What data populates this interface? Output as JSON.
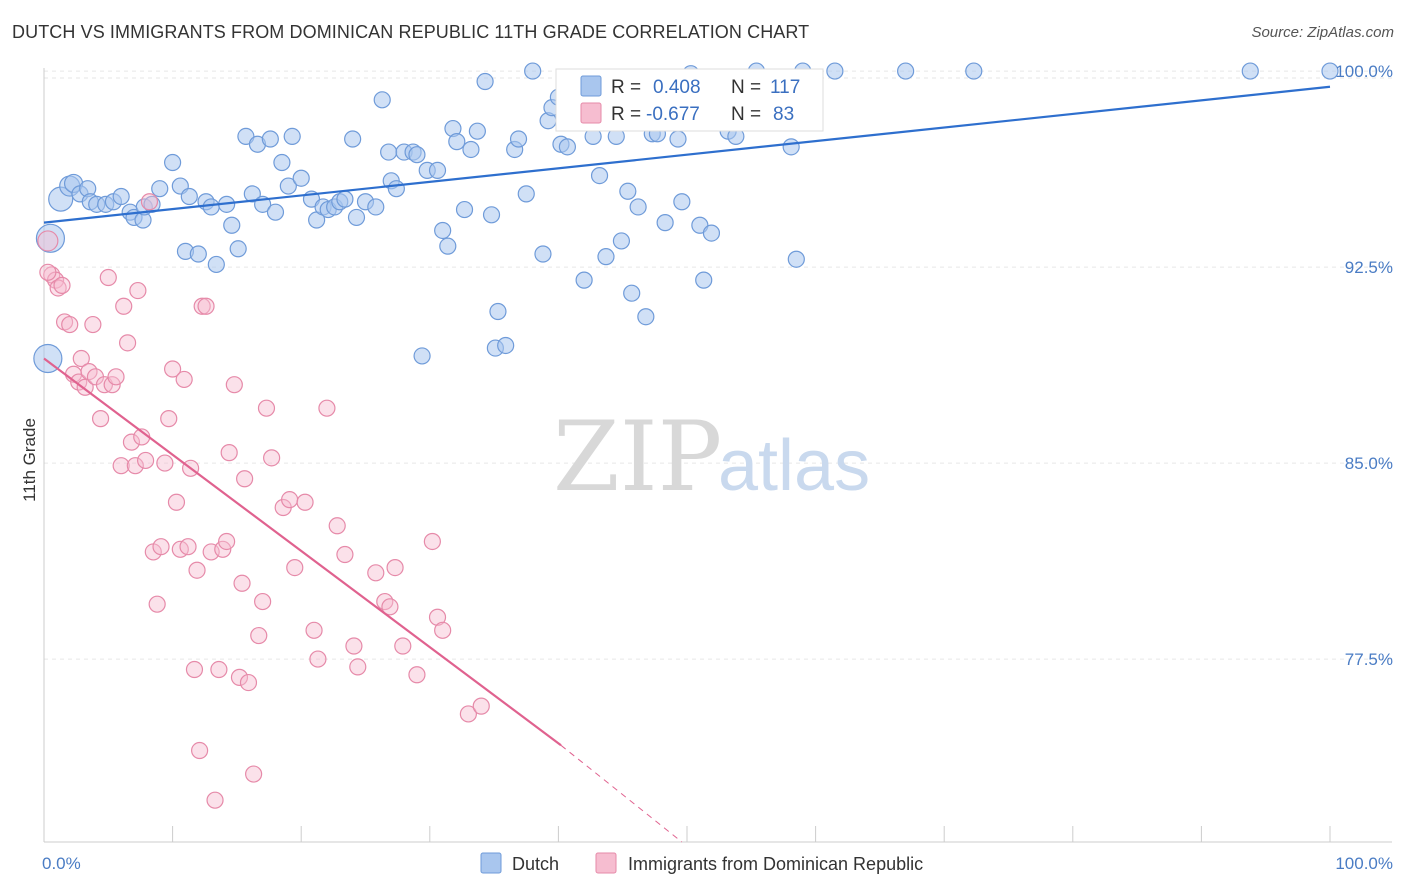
{
  "header": {
    "title": "DUTCH VS IMMIGRANTS FROM DOMINICAN REPUBLIC 11TH GRADE CORRELATION CHART",
    "source": "Source: ZipAtlas.com"
  },
  "watermark": {
    "zip": "ZIP",
    "atlas": "atlas"
  },
  "colors": {
    "dutch_fill": "#a9c6ee",
    "dutch_stroke": "#6f9bd9",
    "dutch_line": "#2e6fce",
    "dom_fill": "#f6bdd0",
    "dom_stroke": "#e68aa9",
    "dom_line": "#e0628f",
    "grid": "#e6e6e6",
    "tick_label": "#4a7cc4"
  },
  "stats": {
    "r_label": "R =",
    "n_label": "N =",
    "dutch": {
      "r": "0.408",
      "n": "117"
    },
    "dom": {
      "r": "-0.677",
      "n": "83"
    }
  },
  "chart_data": {
    "type": "scatter",
    "title": "DUTCH VS IMMIGRANTS FROM DOMINICAN REPUBLIC 11TH GRADE CORRELATION CHART",
    "xlabel": "",
    "ylabel": "11th Grade",
    "xlim": [
      0,
      100
    ],
    "ylim": [
      70.5,
      100.5
    ],
    "x_tick_labels": [
      "0.0%",
      "100.0%"
    ],
    "y_ticks": [
      77.5,
      85.0,
      92.5,
      100.0
    ],
    "y_tick_labels": [
      "77.5%",
      "85.0%",
      "92.5%",
      "100.0%"
    ],
    "grid": true,
    "legend_position": "bottom-center",
    "series": [
      {
        "name": "Dutch",
        "trend": {
          "x": [
            0,
            100
          ],
          "y": [
            94.2,
            99.4
          ]
        },
        "points": [
          [
            0.3,
            89.0,
            14
          ],
          [
            0.5,
            93.6,
            14
          ],
          [
            1.3,
            95.1,
            12
          ],
          [
            2.0,
            95.6,
            10
          ],
          [
            2.3,
            95.7,
            9
          ],
          [
            2.8,
            95.3,
            8
          ],
          [
            3.4,
            95.5,
            8
          ],
          [
            3.6,
            95.0,
            8
          ],
          [
            4.1,
            94.9,
            8
          ],
          [
            4.8,
            94.9,
            8
          ],
          [
            5.4,
            95.0,
            8
          ],
          [
            6.0,
            95.2,
            8
          ],
          [
            6.7,
            94.6,
            8
          ],
          [
            7.0,
            94.4,
            8
          ],
          [
            7.7,
            94.3,
            8
          ],
          [
            7.8,
            94.8,
            8
          ],
          [
            8.4,
            94.9,
            8
          ],
          [
            9.0,
            95.5,
            8
          ],
          [
            10.0,
            96.5,
            8
          ],
          [
            10.6,
            95.6,
            8
          ],
          [
            11.0,
            93.1,
            8
          ],
          [
            11.3,
            95.2,
            8
          ],
          [
            12.0,
            93.0,
            8
          ],
          [
            12.6,
            95.0,
            8
          ],
          [
            13.0,
            94.8,
            8
          ],
          [
            13.4,
            92.6,
            8
          ],
          [
            14.2,
            94.9,
            8
          ],
          [
            14.6,
            94.1,
            8
          ],
          [
            15.1,
            93.2,
            8
          ],
          [
            15.7,
            97.5,
            8
          ],
          [
            16.2,
            95.3,
            8
          ],
          [
            16.6,
            97.2,
            8
          ],
          [
            17.0,
            94.9,
            8
          ],
          [
            17.6,
            97.4,
            8
          ],
          [
            18.0,
            94.6,
            8
          ],
          [
            18.5,
            96.5,
            8
          ],
          [
            19.0,
            95.6,
            8
          ],
          [
            19.3,
            97.5,
            8
          ],
          [
            20.0,
            95.9,
            8
          ],
          [
            20.8,
            95.1,
            8
          ],
          [
            21.2,
            94.3,
            8
          ],
          [
            21.7,
            94.8,
            8
          ],
          [
            22.1,
            94.7,
            8
          ],
          [
            22.6,
            94.8,
            8
          ],
          [
            23.0,
            95.0,
            8
          ],
          [
            23.4,
            95.1,
            8
          ],
          [
            24.0,
            97.4,
            8
          ],
          [
            24.3,
            94.4,
            8
          ],
          [
            25.0,
            95.0,
            8
          ],
          [
            25.8,
            94.8,
            8
          ],
          [
            26.3,
            98.9,
            8
          ],
          [
            26.8,
            96.9,
            8
          ],
          [
            27.0,
            95.8,
            8
          ],
          [
            27.4,
            95.5,
            8
          ],
          [
            28.0,
            96.9,
            8
          ],
          [
            28.7,
            96.9,
            8
          ],
          [
            29.0,
            96.8,
            8
          ],
          [
            29.4,
            89.1,
            8
          ],
          [
            29.8,
            96.2,
            8
          ],
          [
            30.6,
            96.2,
            8
          ],
          [
            31.0,
            93.9,
            8
          ],
          [
            31.4,
            93.3,
            8
          ],
          [
            31.8,
            97.8,
            8
          ],
          [
            32.1,
            97.3,
            8
          ],
          [
            32.7,
            94.7,
            8
          ],
          [
            33.2,
            97.0,
            8
          ],
          [
            33.7,
            97.7,
            8
          ],
          [
            34.3,
            99.6,
            8
          ],
          [
            34.8,
            94.5,
            8
          ],
          [
            35.1,
            89.4,
            8
          ],
          [
            35.3,
            90.8,
            8
          ],
          [
            35.9,
            89.5,
            8
          ],
          [
            36.6,
            97.0,
            8
          ],
          [
            36.9,
            97.4,
            8
          ],
          [
            37.5,
            95.3,
            8
          ],
          [
            38.0,
            100.0,
            8
          ],
          [
            38.8,
            93.0,
            8
          ],
          [
            39.2,
            98.1,
            8
          ],
          [
            39.5,
            98.6,
            8
          ],
          [
            40.0,
            99.0,
            8
          ],
          [
            40.2,
            97.2,
            8
          ],
          [
            40.7,
            97.1,
            8
          ],
          [
            41.4,
            98.3,
            8
          ],
          [
            42.0,
            92.0,
            8
          ],
          [
            42.7,
            97.5,
            8
          ],
          [
            43.2,
            96.0,
            8
          ],
          [
            43.7,
            92.9,
            8
          ],
          [
            44.5,
            97.5,
            8
          ],
          [
            44.9,
            93.5,
            8
          ],
          [
            45.4,
            95.4,
            8
          ],
          [
            45.7,
            91.5,
            8
          ],
          [
            46.2,
            94.8,
            8
          ],
          [
            46.8,
            90.6,
            8
          ],
          [
            47.3,
            97.6,
            8
          ],
          [
            47.7,
            97.6,
            8
          ],
          [
            48.3,
            94.2,
            8
          ],
          [
            49.3,
            97.4,
            8
          ],
          [
            49.6,
            95.0,
            8
          ],
          [
            50.3,
            99.9,
            8
          ],
          [
            50.7,
            98.9,
            8
          ],
          [
            51.0,
            94.1,
            8
          ],
          [
            51.3,
            92.0,
            8
          ],
          [
            51.9,
            93.8,
            8
          ],
          [
            53.2,
            97.7,
            8
          ],
          [
            53.8,
            97.5,
            8
          ],
          [
            55.4,
            100.0,
            8
          ],
          [
            58.1,
            97.1,
            8
          ],
          [
            58.5,
            92.8,
            8
          ],
          [
            59.0,
            100.0,
            8
          ],
          [
            61.5,
            100.0,
            8
          ],
          [
            67.0,
            100.0,
            8
          ],
          [
            72.3,
            100.0,
            8
          ],
          [
            93.8,
            100.0,
            8
          ],
          [
            100.0,
            100.0,
            8
          ]
        ]
      },
      {
        "name": "Immigrants from Dominican Republic",
        "trend": {
          "x": [
            0,
            40.2
          ],
          "y": [
            89.0,
            74.2
          ],
          "dash_to": [
            49.6,
            70.5
          ]
        },
        "points": [
          [
            0.3,
            93.5,
            10
          ],
          [
            0.6,
            92.2,
            8
          ],
          [
            0.9,
            92.0,
            8
          ],
          [
            1.1,
            91.7,
            8
          ],
          [
            1.4,
            91.8,
            8
          ],
          [
            1.6,
            90.4,
            8
          ],
          [
            2.0,
            90.3,
            8
          ],
          [
            2.3,
            88.4,
            8
          ],
          [
            2.7,
            88.1,
            8
          ],
          [
            2.9,
            89.0,
            8
          ],
          [
            3.2,
            87.9,
            8
          ],
          [
            3.5,
            88.5,
            8
          ],
          [
            3.8,
            90.3,
            8
          ],
          [
            4.0,
            88.3,
            8
          ],
          [
            4.4,
            86.7,
            8
          ],
          [
            4.7,
            88.0,
            8
          ],
          [
            5.0,
            92.1,
            8
          ],
          [
            5.3,
            88.0,
            8
          ],
          [
            5.6,
            88.3,
            8
          ],
          [
            6.0,
            84.9,
            8
          ],
          [
            6.2,
            91.0,
            8
          ],
          [
            6.5,
            89.6,
            8
          ],
          [
            6.8,
            85.8,
            8
          ],
          [
            7.1,
            84.9,
            8
          ],
          [
            7.3,
            91.6,
            8
          ],
          [
            7.6,
            86.0,
            8
          ],
          [
            7.9,
            85.1,
            8
          ],
          [
            8.2,
            95.0,
            8
          ],
          [
            8.5,
            81.6,
            8
          ],
          [
            8.8,
            79.6,
            8
          ],
          [
            9.1,
            81.8,
            8
          ],
          [
            9.4,
            85.0,
            8
          ],
          [
            9.7,
            86.7,
            8
          ],
          [
            10.0,
            88.6,
            8
          ],
          [
            10.3,
            83.5,
            8
          ],
          [
            10.6,
            81.7,
            8
          ],
          [
            10.9,
            88.2,
            8
          ],
          [
            11.2,
            81.8,
            8
          ],
          [
            11.4,
            84.8,
            8
          ],
          [
            11.7,
            77.1,
            8
          ],
          [
            11.9,
            80.9,
            8
          ],
          [
            12.1,
            74.0,
            8
          ],
          [
            12.3,
            91.0,
            8
          ],
          [
            12.6,
            91.0,
            8
          ],
          [
            13.0,
            81.6,
            8
          ],
          [
            13.3,
            72.1,
            8
          ],
          [
            13.6,
            77.1,
            8
          ],
          [
            13.9,
            81.7,
            8
          ],
          [
            14.2,
            82.0,
            8
          ],
          [
            14.4,
            85.4,
            8
          ],
          [
            14.8,
            88.0,
            8
          ],
          [
            15.2,
            76.8,
            8
          ],
          [
            15.4,
            80.4,
            8
          ],
          [
            15.6,
            84.4,
            8
          ],
          [
            15.9,
            76.6,
            8
          ],
          [
            16.3,
            73.1,
            8
          ],
          [
            16.7,
            78.4,
            8
          ],
          [
            17.0,
            79.7,
            8
          ],
          [
            17.3,
            87.1,
            8
          ],
          [
            17.7,
            85.2,
            8
          ],
          [
            18.6,
            83.3,
            8
          ],
          [
            19.1,
            83.6,
            8
          ],
          [
            19.5,
            81.0,
            8
          ],
          [
            20.3,
            83.5,
            8
          ],
          [
            21.0,
            78.6,
            8
          ],
          [
            21.3,
            77.5,
            8
          ],
          [
            22.0,
            87.1,
            8
          ],
          [
            22.8,
            82.6,
            8
          ],
          [
            23.4,
            81.5,
            8
          ],
          [
            24.1,
            78.0,
            8
          ],
          [
            24.4,
            77.2,
            8
          ],
          [
            25.8,
            80.8,
            8
          ],
          [
            26.5,
            79.7,
            8
          ],
          [
            26.9,
            79.5,
            8
          ],
          [
            27.3,
            81.0,
            8
          ],
          [
            27.9,
            78.0,
            8
          ],
          [
            29.0,
            76.9,
            8
          ],
          [
            30.2,
            82.0,
            8
          ],
          [
            30.6,
            79.1,
            8
          ],
          [
            31.0,
            78.6,
            8
          ],
          [
            33.0,
            75.4,
            8
          ],
          [
            34.0,
            75.7,
            8
          ],
          [
            0.3,
            92.3,
            8
          ]
        ]
      }
    ]
  },
  "legend": [
    {
      "label": "Dutch"
    },
    {
      "label": "Immigrants from Dominican Republic"
    }
  ]
}
